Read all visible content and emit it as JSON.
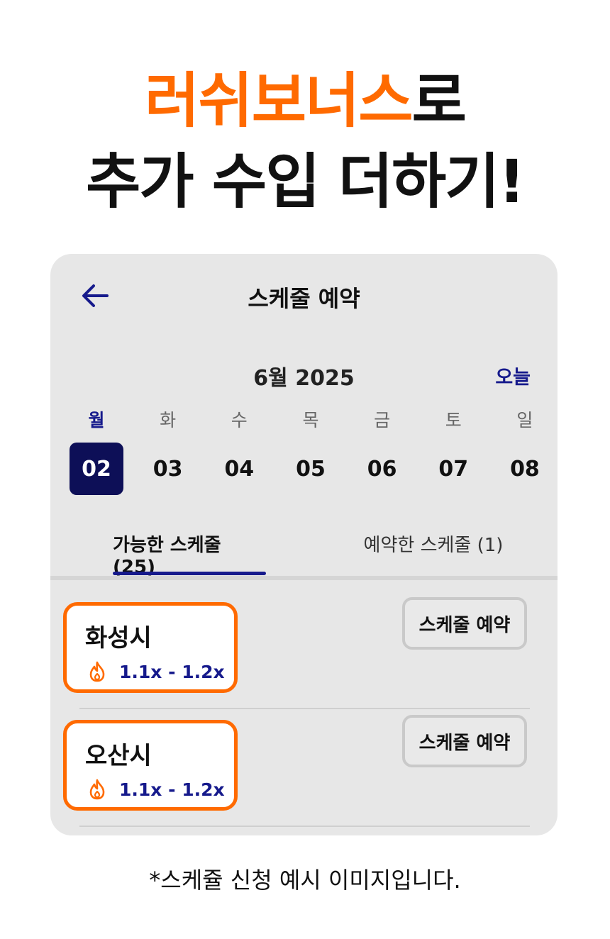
{
  "headline": {
    "line1_highlight": "러쉬보너스",
    "line1_rest": "로",
    "line2": "추가 수입 더하기!"
  },
  "colors": {
    "accent": "#ff6a00",
    "brand": "#161a8c",
    "selected": "#0d0f57"
  },
  "screen": {
    "title": "스케줄 예약",
    "back_icon": "arrow-left-icon",
    "month_label": "6월 2025",
    "today_label": "오늘",
    "week": [
      {
        "name": "월",
        "date": "02",
        "selected": true
      },
      {
        "name": "화",
        "date": "03"
      },
      {
        "name": "수",
        "date": "04"
      },
      {
        "name": "목",
        "date": "05"
      },
      {
        "name": "금",
        "date": "06"
      },
      {
        "name": "토",
        "date": "07"
      },
      {
        "name": "일",
        "date": "08"
      }
    ],
    "tabs": [
      {
        "label": "가능한 스케줄 (25)",
        "active": true
      },
      {
        "label": "예약한 스케줄 (1)"
      }
    ],
    "schedules": [
      {
        "location": "화성시",
        "rate": "1.1x - 1.2x",
        "button": "스케줄 예약",
        "icon": "flame-icon"
      },
      {
        "location": "오산시",
        "rate": "1.1x - 1.2x",
        "button": "스케줄 예약",
        "icon": "flame-icon"
      }
    ]
  },
  "footnote": "*스케쥴 신청 예시 이미지입니다."
}
